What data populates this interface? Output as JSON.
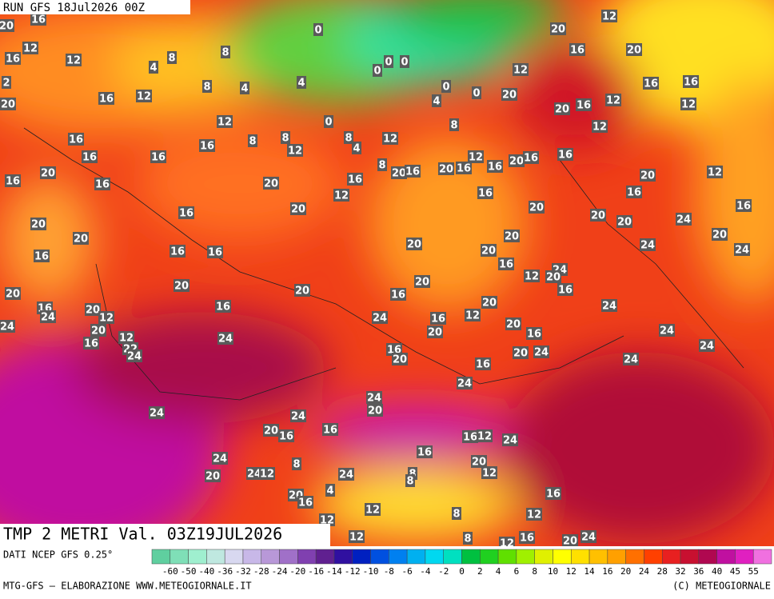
{
  "header": {
    "run": "RUN GFS 18Jul2026 00Z"
  },
  "title": "TMP 2 METRI Val. 03Z19JUL2026",
  "map_labels": [
    20,
    16,
    12,
    16,
    12,
    2,
    20,
    16,
    12,
    8,
    4,
    8,
    8,
    4,
    12,
    8,
    8,
    12,
    0,
    4,
    0,
    0,
    0,
    0,
    0,
    0,
    4,
    8,
    12,
    8,
    4,
    12,
    20,
    16,
    20,
    12,
    20,
    20,
    16,
    12,
    16,
    16,
    12,
    12,
    16,
    16,
    16,
    16,
    16,
    20,
    16,
    20,
    16,
    12,
    8,
    20,
    16,
    20,
    16,
    12,
    16,
    20,
    16,
    16,
    16,
    20,
    20,
    20,
    16,
    12,
    16,
    24,
    20,
    20,
    24,
    16,
    20,
    20,
    20,
    16,
    16,
    16,
    20,
    20,
    20,
    16,
    12,
    24,
    20,
    16,
    24,
    20,
    20,
    20,
    16,
    20,
    16,
    24,
    20,
    12,
    16,
    20,
    24,
    24,
    20,
    24,
    16,
    20,
    12,
    20,
    16,
    24,
    12,
    16,
    22,
    24,
    24,
    16,
    20,
    20,
    24,
    24,
    24,
    16,
    24,
    24,
    20,
    24,
    24,
    20,
    16,
    16,
    16,
    12,
    24,
    16,
    24,
    20,
    12,
    20,
    24,
    12,
    8,
    24,
    8,
    8,
    4,
    16,
    20,
    16,
    12,
    8,
    12,
    12,
    12,
    8,
    12,
    16,
    20,
    24
  ],
  "legend": {
    "source": "DATI NCEP GFS 0.25°",
    "labels": [
      -60,
      -50,
      -40,
      -36,
      -32,
      -28,
      -24,
      -20,
      -16,
      -14,
      -12,
      -10,
      -8,
      -6,
      -4,
      -2,
      0,
      2,
      4,
      6,
      8,
      10,
      12,
      14,
      16,
      20,
      24,
      28,
      32,
      36,
      40,
      45,
      55
    ],
    "colors": [
      "#5fcf9f",
      "#7fdfb7",
      "#9fefcf",
      "#bfe8e0",
      "#d8d8f0",
      "#c8b8e8",
      "#b898d8",
      "#a070c8",
      "#8040b0",
      "#602090",
      "#3010a0",
      "#0020c0",
      "#0050e0",
      "#0080f0",
      "#00b0f0",
      "#00d8f0",
      "#00e0c0",
      "#00c040",
      "#20d020",
      "#60e000",
      "#a0f000",
      "#e0f000",
      "#ffff00",
      "#ffe000",
      "#ffc000",
      "#ffa000",
      "#ff7000",
      "#ff4000",
      "#e82020",
      "#c81030",
      "#b00850",
      "#c010a0",
      "#e020c0",
      "#f070e0"
    ]
  },
  "footer": {
    "left": "MTG-GFS — ELABORAZIONE WWW.METEOGIORNALE.IT",
    "right": "(C) METEOGIORNALE"
  }
}
